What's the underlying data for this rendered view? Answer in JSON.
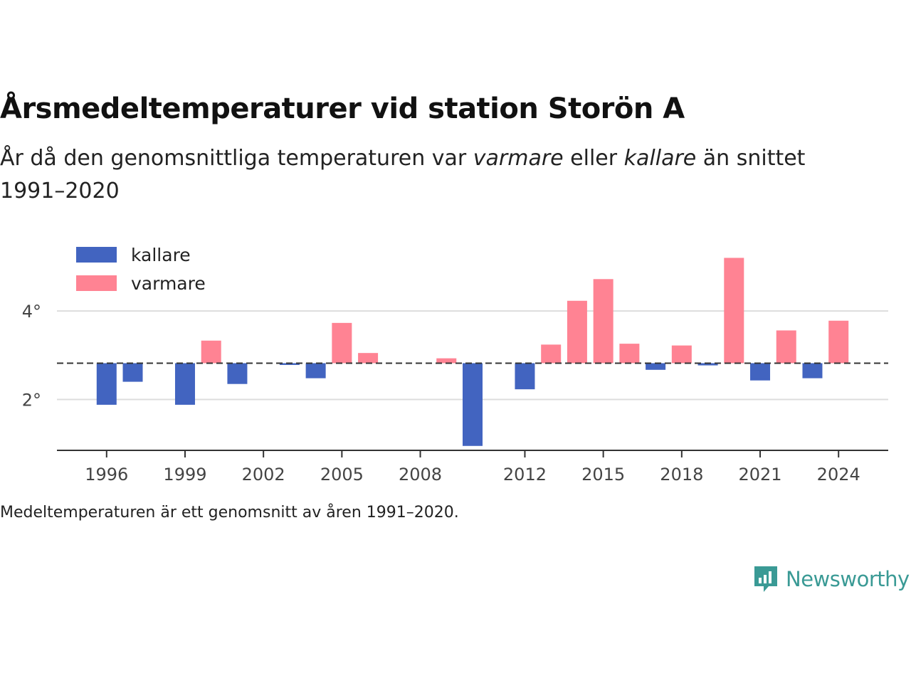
{
  "title": "Årsmedeltemperaturer vid station Storön A",
  "subtitle": {
    "part1": "År då den genomsnittliga temperaturen var ",
    "warmer_word": "varmare",
    "part2": " eller ",
    "colder_word": "kallare",
    "part3": " än snittet 1991–2020"
  },
  "note": "Medeltemperaturen är ett genomsnitt av åren 1991–2020.",
  "brand": {
    "name": "Newsworthy",
    "icon": "newsworthy-logo-icon"
  },
  "colors": {
    "colder": "#4264c0",
    "warmer": "#ff8393",
    "grid": "#dddddd",
    "axis": "#333333",
    "brand": "#3a9a95"
  },
  "chart_data": {
    "type": "bar",
    "baseline": 2.82,
    "ylim": [
      0.85,
      5.4
    ],
    "y_ticks": [
      2,
      4
    ],
    "y_tick_labels": [
      "2°",
      "4°"
    ],
    "x_ticks": [
      1996,
      1999,
      2002,
      2005,
      2008,
      2012,
      2015,
      2018,
      2021,
      2024
    ],
    "x_tick_labels": [
      "1996",
      "1999",
      "2002",
      "2005",
      "2008",
      "2012",
      "2015",
      "2018",
      "2021",
      "2024"
    ],
    "legend": {
      "position": "top-left",
      "items": [
        {
          "label": "kallare",
          "color": "#4264c0"
        },
        {
          "label": "varmare",
          "color": "#ff8393"
        }
      ]
    },
    "x": [
      1996,
      1997,
      1999,
      2000,
      2001,
      2003,
      2004,
      2005,
      2006,
      2009,
      2010,
      2012,
      2013,
      2014,
      2015,
      2016,
      2017,
      2018,
      2019,
      2020,
      2021,
      2022,
      2023,
      2024
    ],
    "values": [
      1.88,
      2.4,
      1.88,
      3.33,
      2.35,
      2.78,
      2.48,
      3.73,
      3.05,
      2.93,
      0.95,
      2.23,
      3.24,
      4.23,
      4.72,
      3.26,
      2.67,
      3.22,
      2.77,
      5.2,
      2.43,
      3.56,
      2.48,
      3.78
    ]
  }
}
